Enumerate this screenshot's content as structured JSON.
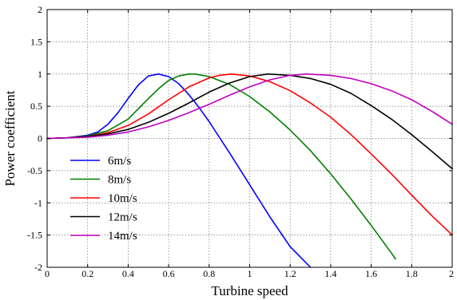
{
  "chart_data": {
    "type": "line",
    "title": "",
    "xlabel": "Turbine speed",
    "ylabel": "Power coefficient",
    "xlim": [
      0,
      2
    ],
    "ylim": [
      -2,
      2
    ],
    "grid": true,
    "legend_position": "bottom-left",
    "x_ticks": [
      0,
      0.2,
      0.4,
      0.6,
      0.8,
      1,
      1.2,
      1.4,
      1.6,
      1.8,
      2
    ],
    "x_tick_labels": [
      "0",
      "0.2",
      "0.4",
      "0.6",
      "0.8",
      "1",
      "1.2",
      "1.4",
      "1.6",
      "1.8",
      "2"
    ],
    "y_ticks": [
      -2,
      -1.5,
      -1,
      -0.5,
      0,
      0.5,
      1,
      1.5,
      2
    ],
    "y_tick_labels": [
      "-2",
      "-1.5",
      "-1",
      "-0.5",
      "0",
      "0.5",
      "1",
      "1.5",
      "2"
    ],
    "series": [
      {
        "name": "6m/s",
        "color": "#0000ff",
        "x": [
          0,
          0.1,
          0.2,
          0.25,
          0.3,
          0.35,
          0.4,
          0.45,
          0.5,
          0.55,
          0.6,
          0.65,
          0.7,
          0.75,
          0.8,
          0.9,
          1.0,
          1.1,
          1.2,
          1.3
        ],
        "y": [
          0,
          0.01,
          0.05,
          0.1,
          0.22,
          0.4,
          0.62,
          0.83,
          0.97,
          1.0,
          0.96,
          0.85,
          0.68,
          0.48,
          0.26,
          -0.22,
          -0.72,
          -1.22,
          -1.68,
          -2.0
        ]
      },
      {
        "name": "8m/s",
        "color": "#008000",
        "x": [
          0,
          0.1,
          0.2,
          0.3,
          0.4,
          0.5,
          0.55,
          0.6,
          0.65,
          0.7,
          0.73,
          0.8,
          0.9,
          1.0,
          1.1,
          1.2,
          1.3,
          1.4,
          1.5,
          1.6,
          1.7,
          1.72
        ],
        "y": [
          0,
          0.01,
          0.04,
          0.12,
          0.3,
          0.62,
          0.77,
          0.9,
          0.97,
          1.0,
          1.0,
          0.96,
          0.84,
          0.65,
          0.41,
          0.13,
          -0.19,
          -0.55,
          -0.94,
          -1.35,
          -1.78,
          -1.87
        ]
      },
      {
        "name": "10m/s",
        "color": "#ff0000",
        "x": [
          0,
          0.1,
          0.2,
          0.3,
          0.4,
          0.5,
          0.6,
          0.7,
          0.8,
          0.85,
          0.91,
          1.0,
          1.1,
          1.2,
          1.3,
          1.4,
          1.5,
          1.6,
          1.7,
          1.8,
          1.9,
          2.0
        ],
        "y": [
          0,
          0.01,
          0.03,
          0.09,
          0.2,
          0.38,
          0.6,
          0.8,
          0.94,
          0.98,
          1.0,
          0.97,
          0.88,
          0.74,
          0.55,
          0.33,
          0.06,
          -0.24,
          -0.55,
          -0.88,
          -1.2,
          -1.5
        ]
      },
      {
        "name": "12m/s",
        "color": "#000000",
        "x": [
          0,
          0.1,
          0.2,
          0.3,
          0.4,
          0.5,
          0.6,
          0.7,
          0.8,
          0.9,
          1.0,
          1.09,
          1.2,
          1.3,
          1.4,
          1.5,
          1.6,
          1.7,
          1.8,
          1.9,
          2.0
        ],
        "y": [
          0,
          0.01,
          0.03,
          0.07,
          0.14,
          0.25,
          0.39,
          0.55,
          0.72,
          0.86,
          0.96,
          1.0,
          0.98,
          0.93,
          0.84,
          0.7,
          0.51,
          0.3,
          0.06,
          -0.2,
          -0.47
        ]
      },
      {
        "name": "14m/s",
        "color": "#bf00bf",
        "x": [
          0,
          0.1,
          0.2,
          0.3,
          0.4,
          0.5,
          0.6,
          0.7,
          0.8,
          0.9,
          1.0,
          1.1,
          1.2,
          1.28,
          1.4,
          1.5,
          1.6,
          1.7,
          1.8,
          1.9,
          2.0
        ],
        "y": [
          0,
          0.01,
          0.02,
          0.05,
          0.1,
          0.18,
          0.28,
          0.4,
          0.53,
          0.67,
          0.8,
          0.91,
          0.98,
          1.0,
          0.98,
          0.93,
          0.85,
          0.74,
          0.6,
          0.42,
          0.22
        ]
      }
    ]
  }
}
